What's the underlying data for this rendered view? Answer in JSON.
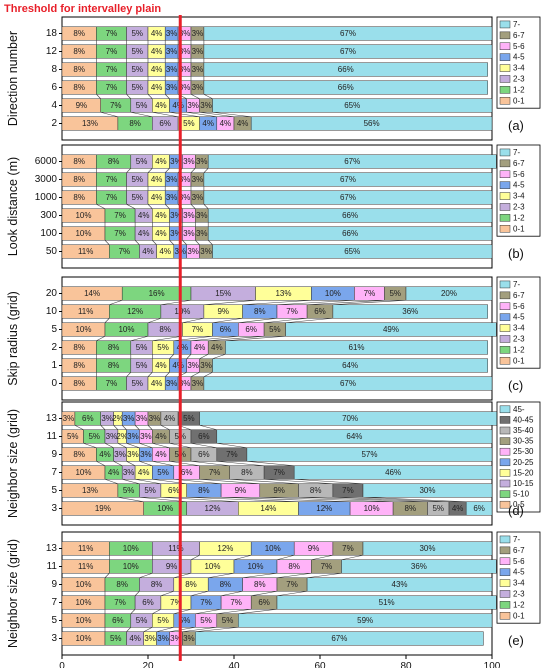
{
  "threshold": {
    "label": "Threshold for intervalley plain",
    "x": 27.5,
    "color": "#e8202a"
  },
  "x_axis": {
    "ticks": [
      0,
      20,
      40,
      60,
      80,
      100
    ],
    "range": [
      0,
      100
    ]
  },
  "palettes": {
    "class8": [
      "#F9C49A",
      "#7DD67F",
      "#C4AEDD",
      "#FFFF99",
      "#7AA6EC",
      "#FFB3F8",
      "#A39F7E",
      "#9ADFEB"
    ],
    "class10": [
      "#F9C49A",
      "#7DD67F",
      "#C4AEDD",
      "#FFFF99",
      "#7AA6EC",
      "#FFB3F8",
      "#A39F7E",
      "#B8B8B8",
      "#707070",
      "#9ADFEB"
    ]
  },
  "chart_data": [
    {
      "type": "bar",
      "orientation": "horizontal",
      "stacked": true,
      "panel": "(a)",
      "ylabel": "Direction number",
      "palette": "class8",
      "categories": [
        "2",
        "4",
        "6",
        "8",
        "12",
        "18"
      ],
      "legend": [
        "7-",
        "6-7",
        "5-6",
        "4-5",
        "3-4",
        "2-3",
        "1-2",
        "0-1"
      ],
      "rows": [
        {
          "values": [
            13,
            8,
            6,
            5,
            4,
            4,
            4,
            56
          ],
          "labels": [
            "13%",
            "8%",
            "6%",
            "5%",
            "4%",
            "4%",
            "4%",
            "56%"
          ]
        },
        {
          "values": [
            9,
            7,
            5,
            4,
            4,
            3,
            3,
            65
          ],
          "labels": [
            "9%",
            "7%",
            "5%",
            "4%",
            "4%",
            "3%",
            "3%",
            "65%"
          ]
        },
        {
          "values": [
            8,
            7,
            5,
            4,
            3,
            3,
            3,
            66
          ],
          "labels": [
            "8%",
            "7%",
            "5%",
            "4%",
            "3%",
            "3%",
            "3%",
            "66%"
          ]
        },
        {
          "values": [
            8,
            7,
            5,
            4,
            3,
            3,
            3,
            66
          ],
          "labels": [
            "8%",
            "7%",
            "5%",
            "4%",
            "3%",
            "3%",
            "3%",
            "66%"
          ]
        },
        {
          "values": [
            8,
            7,
            5,
            4,
            3,
            3,
            3,
            67
          ],
          "labels": [
            "8%",
            "7%",
            "5%",
            "4%",
            "3%",
            "3%",
            "3%",
            "67%"
          ]
        },
        {
          "values": [
            8,
            7,
            5,
            4,
            3,
            3,
            3,
            67
          ],
          "labels": [
            "8%",
            "7%",
            "5%",
            "4%",
            "3%",
            "3%",
            "3%",
            "67%"
          ]
        }
      ]
    },
    {
      "type": "bar",
      "orientation": "horizontal",
      "stacked": true,
      "panel": "(b)",
      "ylabel": "Look distance (m)",
      "palette": "class8",
      "categories": [
        "50",
        "100",
        "300",
        "1000",
        "3000",
        "6000"
      ],
      "legend": [
        "7-",
        "6-7",
        "5-6",
        "4-5",
        "3-4",
        "2-3",
        "1-2",
        "0-1"
      ],
      "rows": [
        {
          "values": [
            11,
            7,
            4,
            4,
            3,
            3,
            3,
            65
          ],
          "labels": [
            "11%",
            "7%",
            "4%",
            "4%",
            "3%",
            "3%",
            "3%",
            "65%"
          ]
        },
        {
          "values": [
            10,
            7,
            4,
            4,
            3,
            3,
            3,
            66
          ],
          "labels": [
            "10%",
            "7%",
            "4%",
            "4%",
            "3%",
            "3%",
            "3%",
            "66%"
          ]
        },
        {
          "values": [
            10,
            7,
            4,
            4,
            3,
            3,
            3,
            66
          ],
          "labels": [
            "10%",
            "7%",
            "4%",
            "4%",
            "3%",
            "3%",
            "3%",
            "66%"
          ]
        },
        {
          "values": [
            8,
            7,
            5,
            4,
            3,
            3,
            3,
            67
          ],
          "labels": [
            "8%",
            "7%",
            "5%",
            "4%",
            "3%",
            "3%",
            "3%",
            "67%"
          ]
        },
        {
          "values": [
            8,
            7,
            5,
            4,
            3,
            3,
            3,
            67
          ],
          "labels": [
            "8%",
            "7%",
            "5%",
            "4%",
            "3%",
            "3%",
            "3%",
            "67%"
          ]
        },
        {
          "values": [
            8,
            8,
            5,
            4,
            3,
            3,
            3,
            67
          ],
          "labels": [
            "8%",
            "8%",
            "5%",
            "4%",
            "3%",
            "3%",
            "3%",
            "67%"
          ]
        }
      ]
    },
    {
      "type": "bar",
      "orientation": "horizontal",
      "stacked": true,
      "panel": "(c)",
      "ylabel": "Skip radius (grid)",
      "palette": "class8",
      "categories": [
        "0",
        "1",
        "2",
        "5",
        "10",
        "20"
      ],
      "legend": [
        "7-",
        "6-7",
        "5-6",
        "4-5",
        "3-4",
        "2-3",
        "1-2",
        "0-1"
      ],
      "rows": [
        {
          "values": [
            8,
            7,
            5,
            4,
            3,
            3,
            3,
            67
          ],
          "labels": [
            "8%",
            "7%",
            "5%",
            "4%",
            "3%",
            "3%",
            "3%",
            "67%"
          ]
        },
        {
          "values": [
            8,
            8,
            5,
            4,
            4,
            3,
            3,
            64
          ],
          "labels": [
            "8%",
            "8%",
            "5%",
            "4%",
            "4%",
            "3%",
            "3%",
            "64%"
          ]
        },
        {
          "values": [
            8,
            8,
            5,
            5,
            4,
            4,
            4,
            61
          ],
          "labels": [
            "8%",
            "8%",
            "5%",
            "5%",
            "4%",
            "4%",
            "4%",
            "61%"
          ]
        },
        {
          "values": [
            10,
            10,
            8,
            7,
            6,
            6,
            5,
            49
          ],
          "labels": [
            "10%",
            "10%",
            "8%",
            "7%",
            "6%",
            "6%",
            "5%",
            "49%"
          ]
        },
        {
          "values": [
            11,
            12,
            10,
            9,
            8,
            7,
            6,
            36
          ],
          "labels": [
            "11%",
            "12%",
            "10%",
            "9%",
            "8%",
            "7%",
            "6%",
            "36%"
          ]
        },
        {
          "values": [
            14,
            16,
            15,
            13,
            10,
            7,
            5,
            20
          ],
          "labels": [
            "14%",
            "16%",
            "15%",
            "13%",
            "10%",
            "7%",
            "5%",
            "20%"
          ]
        }
      ]
    },
    {
      "type": "bar",
      "orientation": "horizontal",
      "stacked": true,
      "panel": "(d)",
      "ylabel": "Neighbor size (grid)",
      "palette": "class10",
      "categories": [
        "3",
        "5",
        "7",
        "9",
        "11",
        "13"
      ],
      "legend": [
        "45-",
        "40-45",
        "35-40",
        "30-35",
        "25-30",
        "20-25",
        "15-20",
        "10-15",
        "5-10",
        "0-5"
      ],
      "rows": [
        {
          "values": [
            19,
            10,
            12,
            14,
            12,
            10,
            8,
            5,
            4,
            6
          ],
          "labels": [
            "19%",
            "10%",
            "12%",
            "14%",
            "12%",
            "10%",
            "8%",
            "5%",
            "4%",
            "6%"
          ]
        },
        {
          "values": [
            13,
            5,
            5,
            6,
            8,
            9,
            9,
            8,
            7,
            30
          ],
          "labels": [
            "13%",
            "5%",
            "5%",
            "6%",
            "8%",
            "9%",
            "9%",
            "8%",
            "7%",
            "30%"
          ]
        },
        {
          "values": [
            10,
            4,
            3,
            4,
            5,
            6,
            7,
            8,
            7,
            46
          ],
          "labels": [
            "10%",
            "4%",
            "3%",
            "4%",
            "5%",
            "6%",
            "7%",
            "8%",
            "7%",
            "46%"
          ]
        },
        {
          "values": [
            8,
            4,
            3,
            3,
            3,
            4,
            5,
            6,
            7,
            57
          ],
          "labels": [
            "8%",
            "4%",
            "3%",
            "3%",
            "3%",
            "4%",
            "5%",
            "6%",
            "7%",
            "57%"
          ]
        },
        {
          "values": [
            5,
            5,
            3,
            2,
            3,
            3,
            4,
            5,
            6,
            64
          ],
          "labels": [
            "5%",
            "5%",
            "3%",
            "2%",
            "3%",
            "3%",
            "4%",
            "5%",
            "6%",
            "64%"
          ]
        },
        {
          "values": [
            3,
            6,
            3,
            2,
            3,
            3,
            3,
            4,
            5,
            70
          ],
          "labels": [
            "3%",
            "6%",
            "3%",
            "2%",
            "3%",
            "3%",
            "3%",
            "4%",
            "5%",
            "70%"
          ]
        }
      ]
    },
    {
      "type": "bar",
      "orientation": "horizontal",
      "stacked": true,
      "panel": "(e)",
      "ylabel": "Neighbor size (grid)",
      "palette": "class8",
      "categories": [
        "3",
        "5",
        "7",
        "9",
        "11",
        "13"
      ],
      "legend": [
        "7-",
        "6-7",
        "5-6",
        "4-5",
        "3-4",
        "2-3",
        "1-2",
        "0-1"
      ],
      "rows": [
        {
          "values": [
            10,
            5,
            4,
            3,
            3,
            3,
            3,
            67
          ],
          "labels": [
            "10%",
            "5%",
            "4%",
            "3%",
            "3%",
            "3%",
            "3%",
            "67%"
          ]
        },
        {
          "values": [
            10,
            6,
            5,
            5,
            5,
            5,
            5,
            59
          ],
          "labels": [
            "10%",
            "6%",
            "5%",
            "5%",
            "5%",
            "5%",
            "5%",
            "59%"
          ]
        },
        {
          "values": [
            10,
            7,
            6,
            7,
            7,
            7,
            6,
            51
          ],
          "labels": [
            "10%",
            "7%",
            "6%",
            "7%",
            "7%",
            "7%",
            "6%",
            "51%"
          ]
        },
        {
          "values": [
            10,
            8,
            8,
            8,
            8,
            8,
            7,
            43
          ],
          "labels": [
            "10%",
            "8%",
            "8%",
            "8%",
            "8%",
            "8%",
            "7%",
            "43%"
          ]
        },
        {
          "values": [
            11,
            10,
            9,
            10,
            10,
            8,
            7,
            36
          ],
          "labels": [
            "11%",
            "10%",
            "9%",
            "10%",
            "10%",
            "8%",
            "7%",
            "36%"
          ]
        },
        {
          "values": [
            11,
            10,
            11,
            12,
            10,
            9,
            7,
            30
          ],
          "labels": [
            "11%",
            "10%",
            "11%",
            "12%",
            "10%",
            "9%",
            "7%",
            "30%"
          ]
        }
      ]
    }
  ]
}
